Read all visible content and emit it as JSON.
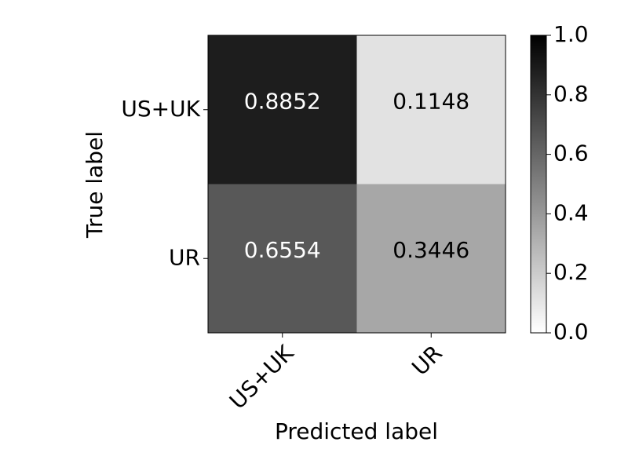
{
  "chart_data": {
    "type": "heatmap",
    "x_label": "Predicted label",
    "y_label": "True label",
    "x_categories": [
      "US+UK",
      "UR"
    ],
    "y_categories": [
      "US+UK",
      "UR"
    ],
    "values": [
      [
        0.8852,
        0.1148
      ],
      [
        0.6554,
        0.3446
      ]
    ],
    "colormap": "gray_r",
    "clim": [
      0,
      1
    ],
    "cticks": [
      {
        "value": 0,
        "label": "0.0"
      },
      0.2,
      0.4,
      0.6,
      0.8,
      {
        "value": 1,
        "label": "1.0"
      }
    ]
  }
}
